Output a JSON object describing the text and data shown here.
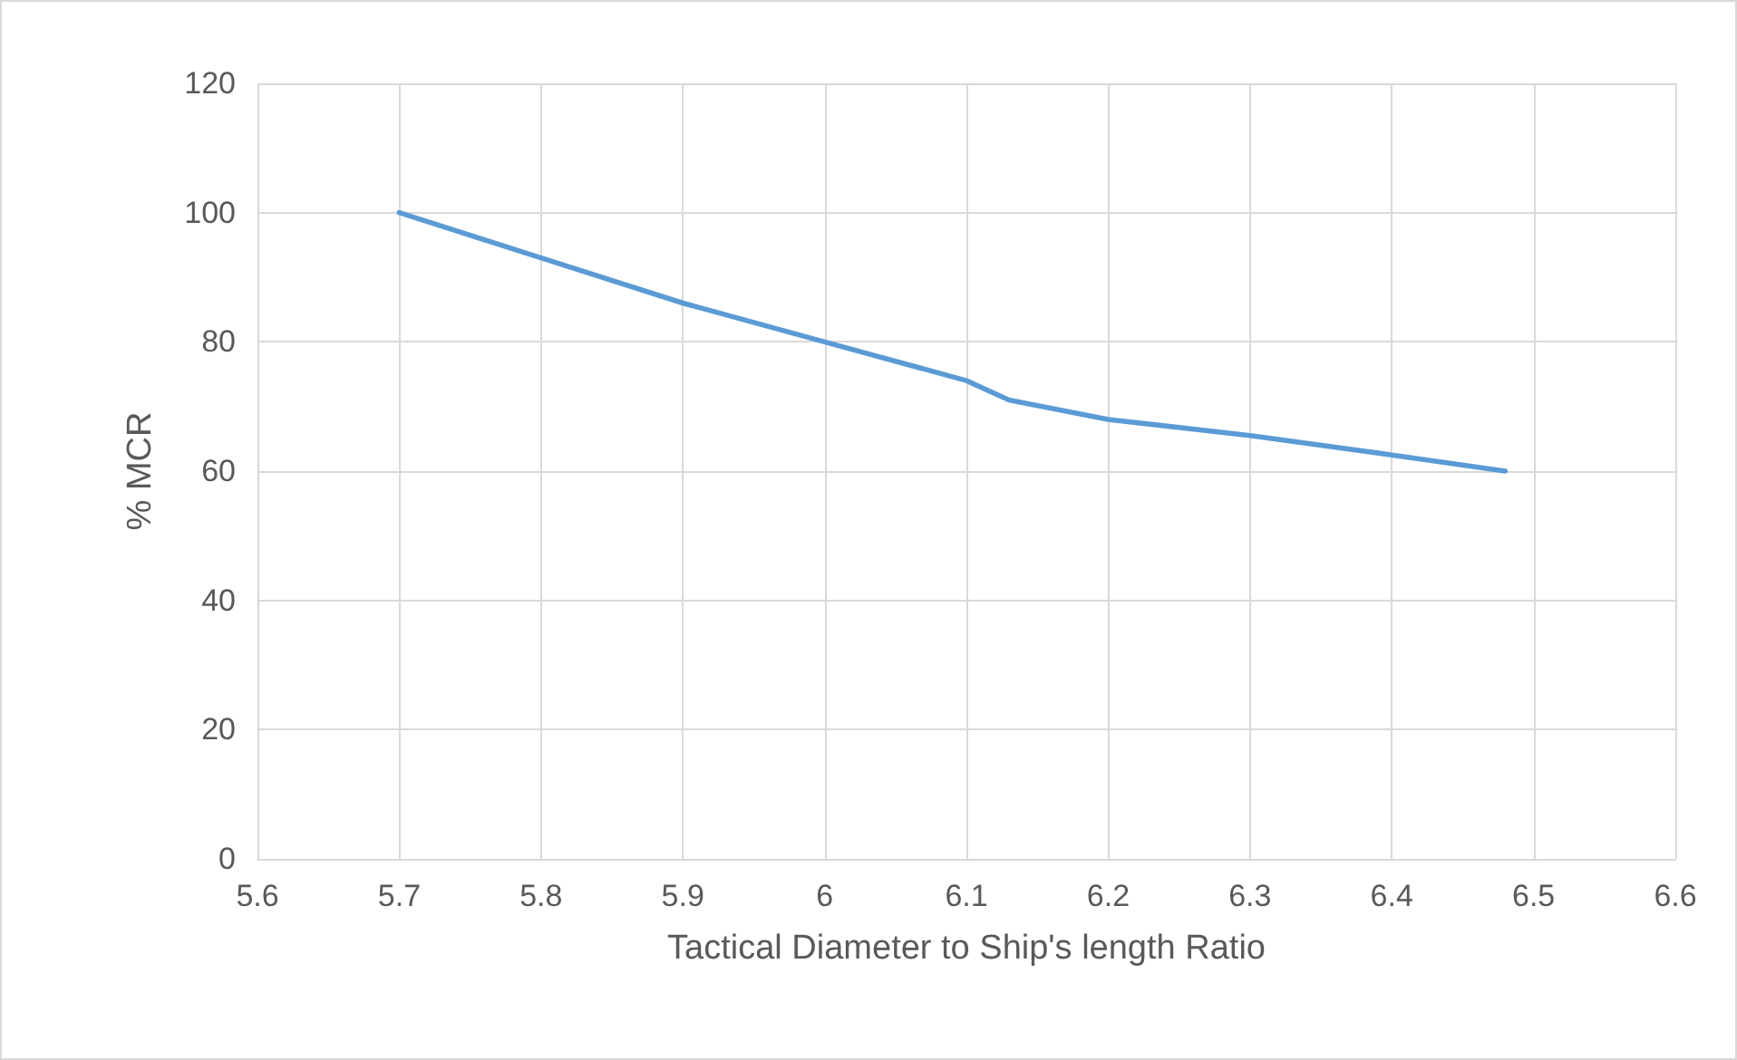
{
  "chart_data": {
    "type": "line",
    "xlabel": "Tactical Diameter to Ship's length Ratio",
    "ylabel": "% MCR",
    "x": [
      5.7,
      5.8,
      5.9,
      6.0,
      6.1,
      6.13,
      6.2,
      6.3,
      6.4,
      6.48
    ],
    "series": [
      {
        "color": "#5b9bd5",
        "values": [
          100,
          93,
          86,
          80,
          74,
          71,
          68,
          65.5,
          62.5,
          60
        ]
      }
    ],
    "xlim": [
      5.6,
      6.6
    ],
    "xticks": [
      5.6,
      5.7,
      5.8,
      5.9,
      6,
      6.1,
      6.2,
      6.3,
      6.4,
      6.5,
      6.6
    ],
    "ylim": [
      0,
      120
    ],
    "yticks": [
      0,
      20,
      40,
      60,
      80,
      100,
      120
    ],
    "grid": true,
    "marker": "none",
    "line_style": "solid"
  }
}
